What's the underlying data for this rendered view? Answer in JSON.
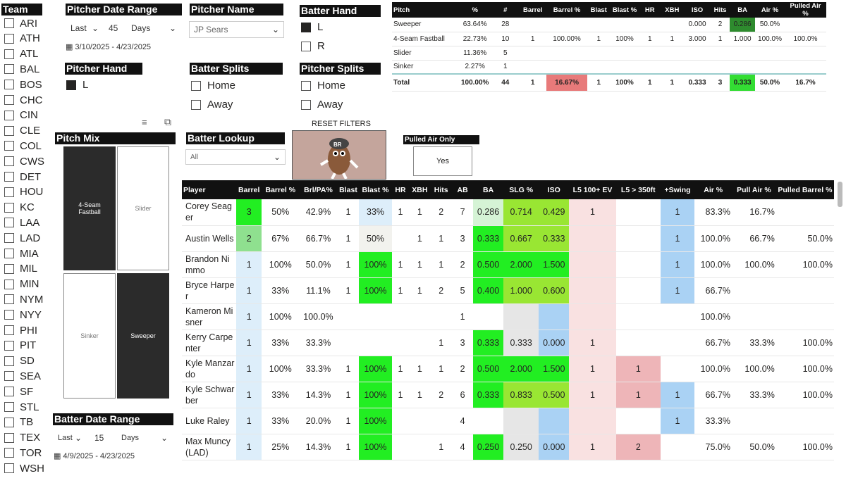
{
  "team_header": "Team",
  "teams": [
    "ARI",
    "ATH",
    "ATL",
    "BAL",
    "BOS",
    "CHC",
    "CIN",
    "CLE",
    "COL",
    "CWS",
    "DET",
    "HOU",
    "KC",
    "LAA",
    "LAD",
    "MIA",
    "MIL",
    "MIN",
    "NYM",
    "NYY",
    "PHI",
    "PIT",
    "SD",
    "SEA",
    "SF",
    "STL",
    "TB",
    "TEX",
    "TOR",
    "WSH"
  ],
  "pitcher_date_range": {
    "header": "Pitcher Date Range",
    "mode": "Last",
    "count": "45",
    "unit": "Days",
    "range": "3/10/2025 - 4/23/2025"
  },
  "pitcher_name": {
    "header": "Pitcher Name",
    "value": "JP Sears"
  },
  "batter_hand": {
    "header": "Batter Hand",
    "options": [
      "L",
      "R"
    ],
    "checked": [
      true,
      false
    ]
  },
  "pitcher_hand": {
    "header": "Pitcher Hand",
    "options": [
      "L"
    ]
  },
  "batter_splits": {
    "header": "Batter Splits",
    "options": [
      "Home",
      "Away"
    ]
  },
  "pitcher_splits": {
    "header": "Pitcher Splits",
    "options": [
      "Home",
      "Away"
    ]
  },
  "pitch_mix": {
    "header": "Pitch Mix",
    "tiles": [
      "4-Seam Fastball",
      "Slider",
      "Sinker",
      "Sweeper"
    ]
  },
  "batter_lookup": {
    "header": "Batter Lookup",
    "value": "All"
  },
  "reset_filters": "RESET FILTERS",
  "pulled_air": {
    "header": "Pulled Air Only",
    "value": "Yes"
  },
  "batter_date_range": {
    "header": "Batter Date Range",
    "mode": "Last",
    "count": "15",
    "unit": "Days",
    "range": "4/9/2025 - 4/23/2025"
  },
  "pitch_table": {
    "columns": [
      "Pitch",
      "%",
      "#",
      "Barrel",
      "Barrel %",
      "Blast",
      "Blast %",
      "HR",
      "XBH",
      "ISO",
      "Hits",
      "BA",
      "Air %",
      "Pulled Air %"
    ],
    "rows": [
      [
        "Sweeper",
        "63.64%",
        "28",
        "",
        "",
        "",
        "",
        "",
        "",
        "0.000",
        "2",
        "0.286",
        "50.0%",
        ""
      ],
      [
        "4-Seam Fastball",
        "22.73%",
        "10",
        "1",
        "100.00%",
        "1",
        "100%",
        "1",
        "1",
        "3.000",
        "1",
        "1.000",
        "100.0%",
        "100.0%"
      ],
      [
        "Slider",
        "11.36%",
        "5",
        "",
        "",
        "",
        "",
        "",
        "",
        "",
        "",
        "",
        "",
        ""
      ],
      [
        "Sinker",
        "2.27%",
        "1",
        "",
        "",
        "",
        "",
        "",
        "",
        "",
        "",
        "",
        "",
        ""
      ]
    ],
    "total": [
      "Total",
      "100.00%",
      "44",
      "1",
      "16.67%",
      "1",
      "100%",
      "1",
      "1",
      "0.333",
      "3",
      "0.333",
      "50.0%",
      "16.7%"
    ],
    "colors": {
      "ba_high": "#2e8b2e",
      "ba_total": "#33dd33",
      "barrel_total": "#e87a7a"
    }
  },
  "player_table": {
    "columns": [
      "Player",
      "Barrel",
      "Barrel %",
      "Brl/PA%",
      "Blast",
      "Blast %",
      "HR",
      "XBH",
      "Hits",
      "AB",
      "BA",
      "SLG %",
      "ISO",
      "L5 100+ EV",
      "L5 > 350ft",
      "+Swing",
      "Air %",
      "Pull Air %",
      "Pulled Barrel %"
    ],
    "rows": [
      [
        "Corey Seager",
        "3",
        "50%",
        "42.9%",
        "1",
        "33%",
        "1",
        "1",
        "2",
        "7",
        "0.286",
        "0.714",
        "0.429",
        "1",
        "",
        "1",
        "83.3%",
        "16.7%",
        ""
      ],
      [
        "Austin Wells",
        "2",
        "67%",
        "66.7%",
        "1",
        "50%",
        "",
        "1",
        "1",
        "3",
        "0.333",
        "0.667",
        "0.333",
        "",
        "",
        "1",
        "100.0%",
        "66.7%",
        "50.0%"
      ],
      [
        "Brandon Nimmo",
        "1",
        "100%",
        "50.0%",
        "1",
        "100%",
        "1",
        "1",
        "1",
        "2",
        "0.500",
        "2.000",
        "1.500",
        "",
        "",
        "1",
        "100.0%",
        "100.0%",
        "100.0%"
      ],
      [
        "Bryce Harper",
        "1",
        "33%",
        "11.1%",
        "1",
        "100%",
        "1",
        "1",
        "2",
        "5",
        "0.400",
        "1.000",
        "0.600",
        "",
        "",
        "1",
        "66.7%",
        "",
        ""
      ],
      [
        "Kameron Misner",
        "1",
        "100%",
        "100.0%",
        "",
        "",
        "",
        "",
        "",
        "1",
        "",
        "",
        "",
        "",
        "",
        "",
        "100.0%",
        "",
        ""
      ],
      [
        "Kerry Carpenter",
        "1",
        "33%",
        "33.3%",
        "",
        "",
        "",
        "",
        "1",
        "3",
        "0.333",
        "0.333",
        "0.000",
        "1",
        "",
        "",
        "66.7%",
        "33.3%",
        "100.0%"
      ],
      [
        "Kyle Manzardo",
        "1",
        "100%",
        "33.3%",
        "1",
        "100%",
        "1",
        "1",
        "1",
        "2",
        "0.500",
        "2.000",
        "1.500",
        "1",
        "1",
        "",
        "100.0%",
        "100.0%",
        "100.0%"
      ],
      [
        "Kyle Schwarber",
        "1",
        "33%",
        "14.3%",
        "1",
        "100%",
        "1",
        "1",
        "2",
        "6",
        "0.333",
        "0.833",
        "0.500",
        "1",
        "1",
        "1",
        "66.7%",
        "33.3%",
        "100.0%"
      ],
      [
        "Luke Raley",
        "1",
        "33%",
        "20.0%",
        "1",
        "100%",
        "",
        "",
        "",
        "4",
        "",
        "",
        "",
        "",
        "",
        "1",
        "33.3%",
        "",
        ""
      ],
      [
        "Max Muncy (LAD)",
        "1",
        "25%",
        "14.3%",
        "1",
        "100%",
        "",
        "",
        "1",
        "4",
        "0.250",
        "0.250",
        "0.000",
        "1",
        "2",
        "",
        "75.0%",
        "50.0%",
        "100.0%"
      ]
    ]
  },
  "colors": {
    "green": "#22ee22",
    "lightgreen": "#8fe08f",
    "lightblue": "#ddeefa",
    "blue": "#aad2f4",
    "pink": "#f9e1e1",
    "pinkstrong": "#eeb5b8",
    "gray": "#e6e6e6",
    "lime": "#99e633",
    "palegreen": "#d5f3d5"
  }
}
